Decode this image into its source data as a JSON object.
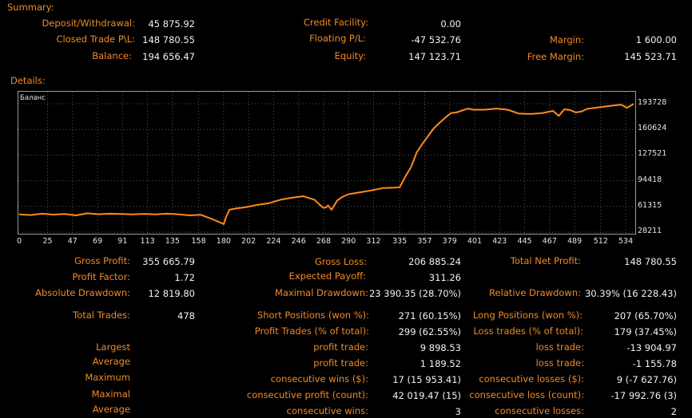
{
  "summary": {
    "title": "Summary:",
    "deposit_label": "Deposit/Withdrawal:",
    "deposit_value": "45 875.92",
    "closed_pl_label": "Closed Trade P\\L:",
    "closed_pl_value": "148 780.55",
    "balance_label": "Balance:",
    "balance_value": "194 656.47",
    "credit_label": "Credit Facility:",
    "credit_value": "0.00",
    "floating_label": "Floating P/L:",
    "floating_value": "-47 532.76",
    "equity_label": "Equity:",
    "equity_value": "147 123.71",
    "margin_label": "Margin:",
    "margin_value": "1 600.00",
    "free_margin_label": "Free Margin:",
    "free_margin_value": "145 523.71"
  },
  "details": {
    "title": "Details:"
  },
  "chart_data": {
    "type": "line",
    "title": "Баланс",
    "line_color": "#ff8c1a",
    "grid_color": "#555555",
    "x_ticks": [
      "0",
      "25",
      "47",
      "69",
      "91",
      "113",
      "135",
      "158",
      "180",
      "202",
      "224",
      "246",
      "268",
      "290",
      "312",
      "335",
      "357",
      "379",
      "401",
      "423",
      "445",
      "467",
      "489",
      "512",
      "534"
    ],
    "y_ticks": [
      "193728",
      "160624",
      "127521",
      "94418",
      "61315",
      "28211"
    ],
    "xlim": [
      0,
      541
    ],
    "ylim": [
      28211,
      193728
    ],
    "series": [
      {
        "x": [
          0,
          10,
          20,
          30,
          40,
          50,
          60,
          70,
          80,
          90,
          100,
          110,
          120,
          130,
          140,
          150,
          160,
          170,
          178,
          180,
          182,
          185,
          190,
          200,
          210,
          220,
          230,
          240,
          250,
          260,
          265,
          268,
          270,
          272,
          275,
          280,
          285,
          290,
          300,
          310,
          320,
          330,
          335,
          340,
          345,
          350,
          355,
          360,
          365,
          370,
          375,
          380,
          385,
          390,
          395,
          400,
          410,
          420,
          430,
          440,
          450,
          460,
          470,
          475,
          480,
          485,
          490,
          495,
          500,
          510,
          520,
          530,
          535,
          541
        ],
        "y": [
          51000,
          50200,
          52000,
          50800,
          51600,
          49800,
          52500,
          51200,
          52000,
          51500,
          51000,
          51800,
          51000,
          52000,
          51200,
          49800,
          50500,
          45000,
          40000,
          38500,
          47000,
          57000,
          58500,
          60500,
          63500,
          65500,
          70000,
          72500,
          74500,
          70000,
          63000,
          59500,
          60000,
          62500,
          57000,
          69000,
          74000,
          77000,
          79500,
          82000,
          85000,
          85500,
          86000,
          100000,
          112000,
          131000,
          142000,
          152000,
          162000,
          169000,
          175500,
          181500,
          182500,
          185000,
          187500,
          186000,
          186000,
          187500,
          186000,
          181000,
          180500,
          181500,
          184500,
          178000,
          186500,
          185500,
          182500,
          183500,
          187000,
          189000,
          191000,
          192500,
          188500,
          193500
        ]
      }
    ]
  },
  "stats": {
    "gross_profit_label": "Gross Profit:",
    "gross_profit_value": "355 665.79",
    "gross_loss_label": "Gross Loss:",
    "gross_loss_value": "206 885.24",
    "total_net_label": "Total Net Profit:",
    "total_net_value": "148 780.55",
    "profit_factor_label": "Profit Factor:",
    "profit_factor_value": "1.72",
    "expected_payoff_label": "Expected Payoff:",
    "expected_payoff_value": "311.26",
    "abs_dd_label": "Absolute Drawdown:",
    "abs_dd_value": "12 819.80",
    "max_dd_label": "Maximal Drawdown:",
    "max_dd_value": "23 390.35 (28.70%)",
    "rel_dd_label": "Relative Drawdown:",
    "rel_dd_value": "30.39% (16 228.43)",
    "total_trades_label": "Total Trades:",
    "total_trades_value": "478",
    "short_label": "Short Positions (won %):",
    "short_value": "271 (60.15%)",
    "long_label": "Long Positions (won %):",
    "long_value": "207 (65.70%)",
    "profit_trades_label": "Profit Trades (% of total):",
    "profit_trades_value": "299 (62.55%)",
    "loss_trades_label": "Loss trades (% of total):",
    "loss_trades_value": "179 (37.45%)",
    "largest_label": "Largest",
    "largest_profit_label": "profit trade:",
    "largest_profit_value": "9 898.53",
    "largest_loss_label": "loss trade:",
    "largest_loss_value": "-13 904.97",
    "average_label": "Average",
    "average_profit_label": "profit trade:",
    "average_profit_value": "1 189.52",
    "average_loss_label": "loss trade:",
    "average_loss_value": "-1 155.78",
    "maximum_label": "Maximum",
    "max_wins_label": "consecutive wins ($):",
    "max_wins_value": "17 (15 953.41)",
    "max_losses_label": "consecutive losses ($):",
    "max_losses_value": "9 (-7 627.76)",
    "maximal_label": "Maximal",
    "maximal_profit_label": "consecutive profit (count):",
    "maximal_profit_value": "42 019.47 (15)",
    "maximal_loss_label": "consecutive loss (count):",
    "maximal_loss_value": "-17 992.76 (3)",
    "average2_label": "Average",
    "avg_wins_label": "consecutive wins:",
    "avg_wins_value": "3",
    "avg_losses_label": "consecutive losses:",
    "avg_losses_value": "2"
  }
}
